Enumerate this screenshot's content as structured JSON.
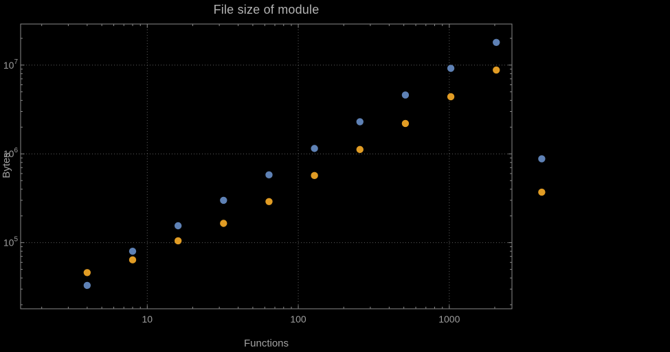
{
  "chart_data": {
    "type": "scatter",
    "title": "File size of module",
    "xlabel": "Functions",
    "ylabel": "Bytes",
    "x_scale": "log",
    "y_scale": "log",
    "xlim": [
      1.45,
      2600
    ],
    "ylim": [
      18000,
      29000000
    ],
    "grid": true,
    "legend": "none",
    "x_ticks": [
      {
        "value": 10,
        "label": "10"
      },
      {
        "value": 100,
        "label": "100"
      },
      {
        "value": 1000,
        "label": "1000"
      }
    ],
    "y_ticks": [
      {
        "value": 100000,
        "base": "10",
        "exp": "5"
      },
      {
        "value": 1000000,
        "base": "10",
        "exp": "6"
      },
      {
        "value": 10000000,
        "base": "10",
        "exp": "7"
      }
    ],
    "series": [
      {
        "name": "series-blue",
        "color": "#5e81b5",
        "points": [
          [
            4,
            33000
          ],
          [
            8,
            80000
          ],
          [
            16,
            155000
          ],
          [
            32,
            300000
          ],
          [
            64,
            580000
          ],
          [
            128,
            1150000
          ],
          [
            256,
            2300000
          ],
          [
            512,
            4600000
          ],
          [
            1024,
            9200000
          ],
          [
            2048,
            18000000
          ],
          [
            4096,
            880000
          ]
        ]
      },
      {
        "name": "series-orange",
        "color": "#e19c24",
        "points": [
          [
            4,
            46000
          ],
          [
            8,
            64000
          ],
          [
            16,
            105000
          ],
          [
            32,
            165000
          ],
          [
            64,
            290000
          ],
          [
            128,
            570000
          ],
          [
            256,
            1120000
          ],
          [
            512,
            2200000
          ],
          [
            1024,
            4400000
          ],
          [
            2048,
            8800000
          ],
          [
            4096,
            370000
          ]
        ]
      }
    ],
    "colors": {
      "background": "#000000",
      "frame": "#8a8a8a",
      "grid": "#5f5f5f",
      "tick_text": "#9e9e9e",
      "label_text": "#a2a2a2",
      "title_text": "#b3b3b3"
    }
  }
}
